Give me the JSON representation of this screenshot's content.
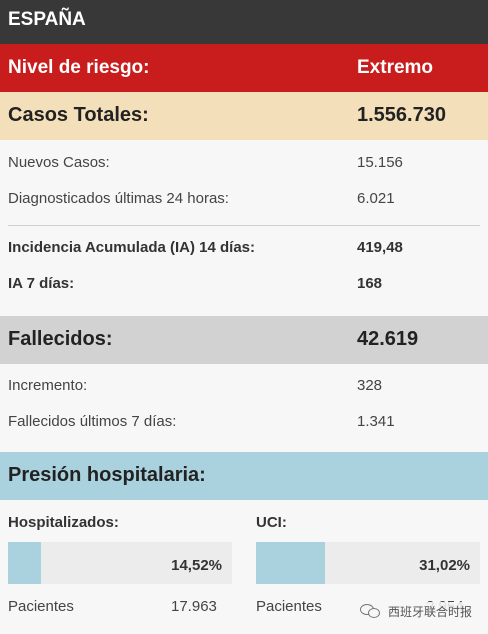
{
  "header": {
    "title": "ESPAÑA"
  },
  "risk": {
    "label": "Nivel de riesgo:",
    "value": "Extremo"
  },
  "casos": {
    "label": "Casos Totales:",
    "value": "1.556.730",
    "rows": [
      {
        "label": "Nuevos Casos:",
        "value": "15.156"
      },
      {
        "label": "Diagnosticados últimas 24 horas:",
        "value": "6.021"
      },
      {
        "label": "Incidencia Acumulada (IA) 14 días:",
        "value": "419,48"
      },
      {
        "label": "IA 7 días:",
        "value": "168"
      }
    ]
  },
  "fallecidos": {
    "label": "Fallecidos:",
    "value": "42.619",
    "rows": [
      {
        "label": "Incremento:",
        "value": "328"
      },
      {
        "label": "Fallecidos últimos 7 días:",
        "value": "1.341"
      }
    ]
  },
  "presion": {
    "label": "Presión hospitalaria:",
    "hospitalizados": {
      "label": "Hospitalizados:",
      "percent": "14,52%",
      "fill_fraction": 0.1452,
      "pacientes_label": "Pacientes",
      "pacientes_value": "17.963"
    },
    "uci": {
      "label": "UCI:",
      "percent": "31,02%",
      "fill_fraction": 0.3102,
      "pacientes_label": "Pacientes",
      "pacientes_value": "2.954"
    }
  },
  "watermark": {
    "text": "西班牙联合时报",
    "icon": "wechat-icon"
  },
  "colors": {
    "header": "#383838",
    "risk": "#c91c1c",
    "casos": "#f4dfbb",
    "fallecidos": "#d2d2d2",
    "presion": "#a9d1de"
  }
}
